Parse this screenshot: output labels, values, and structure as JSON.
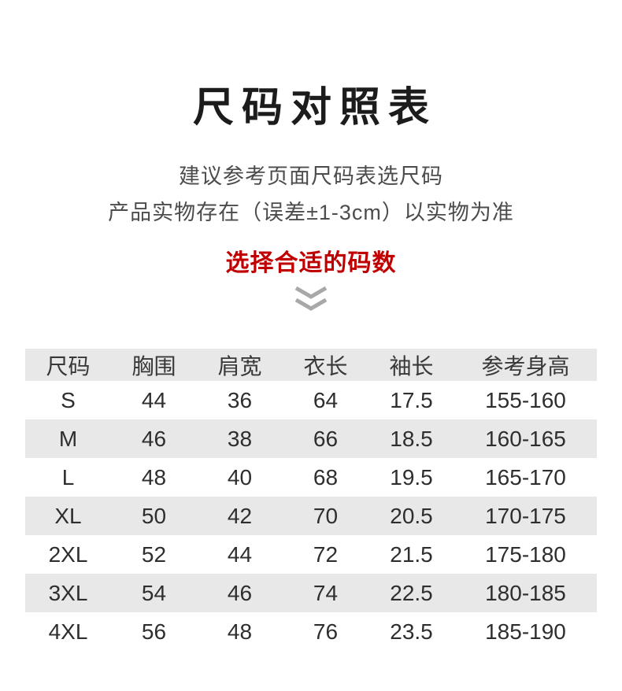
{
  "page": {
    "title": "尺码对照表",
    "subtitle_line1": "建议参考页面尺码表选尺码",
    "subtitle_line2": "产品实物存在（误差±1-3cm）以实物为准",
    "highlight": "选择合适的码数",
    "chevron_icon": "double-chevron-down",
    "colors": {
      "highlight_red": "#c00000",
      "stripe_gray": "#e8e8e8",
      "chevron_gray": "#a8a8a8"
    }
  },
  "table": {
    "columns": [
      "尺码",
      "胸围",
      "肩宽",
      "衣长",
      "袖长",
      "参考身高"
    ],
    "rows": [
      [
        "S",
        "44",
        "36",
        "64",
        "17.5",
        "155-160"
      ],
      [
        "M",
        "46",
        "38",
        "66",
        "18.5",
        "160-165"
      ],
      [
        "L",
        "48",
        "40",
        "68",
        "19.5",
        "165-170"
      ],
      [
        "XL",
        "50",
        "42",
        "70",
        "20.5",
        "170-175"
      ],
      [
        "2XL",
        "52",
        "44",
        "72",
        "21.5",
        "175-180"
      ],
      [
        "3XL",
        "54",
        "46",
        "74",
        "22.5",
        "180-185"
      ],
      [
        "4XL",
        "56",
        "48",
        "76",
        "23.5",
        "185-190"
      ]
    ]
  },
  "chart_data": {
    "type": "table",
    "title": "尺码对照表",
    "columns": [
      "尺码",
      "胸围",
      "肩宽",
      "衣长",
      "袖长",
      "参考身高"
    ],
    "rows": [
      [
        "S",
        44,
        36,
        64,
        17.5,
        "155-160"
      ],
      [
        "M",
        46,
        38,
        66,
        18.5,
        "160-165"
      ],
      [
        "L",
        48,
        40,
        68,
        19.5,
        "165-170"
      ],
      [
        "XL",
        50,
        42,
        70,
        20.5,
        "170-175"
      ],
      [
        "2XL",
        52,
        44,
        72,
        21.5,
        "175-180"
      ],
      [
        "3XL",
        54,
        46,
        74,
        22.5,
        "180-185"
      ],
      [
        "4XL",
        56,
        48,
        76,
        23.5,
        "185-190"
      ]
    ]
  }
}
